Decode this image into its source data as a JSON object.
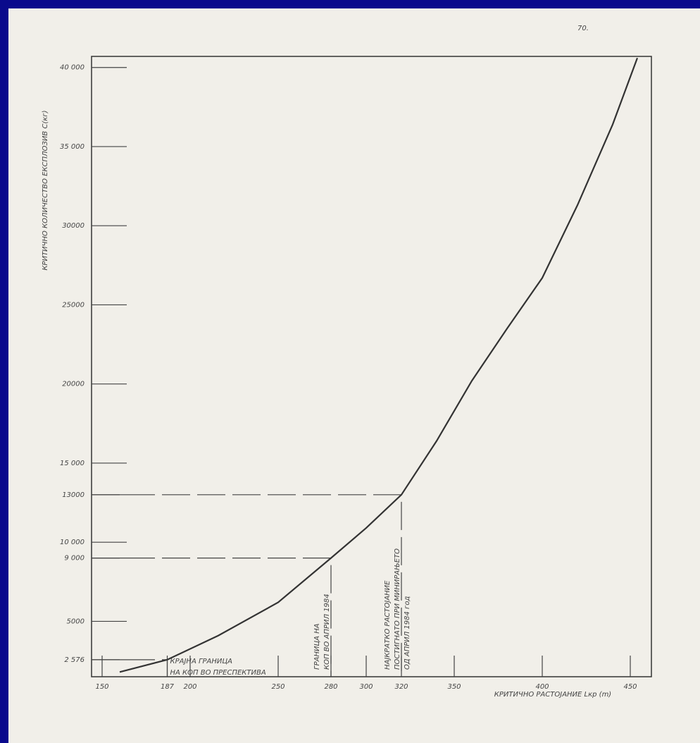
{
  "chart_data": {
    "type": "line",
    "page_number": "70.",
    "y_label": "КРИТИЧНО КОЛИЧЕСТВО ЕКСПЛОЗИВ  C(кг)",
    "x_label": "КРИТИЧНО  РАСТОЈАНИЕ  Lкр (m)",
    "x": [
      160,
      187,
      216,
      250,
      280,
      300,
      320,
      340,
      360,
      380,
      400,
      420,
      440,
      454
    ],
    "series": [
      {
        "color": "#333333",
        "values": [
          1800,
          2576,
          4100,
          6200,
          9000,
          10900,
          13000,
          16400,
          20200,
          23500,
          26700,
          31300,
          36400,
          40600
        ]
      }
    ],
    "xlim": [
      144,
      462
    ],
    "ylim": [
      1500,
      40700
    ],
    "xticks": [
      150,
      187,
      200,
      250,
      280,
      300,
      320,
      350,
      400,
      450
    ],
    "yticks": [
      {
        "value": 40000,
        "label": "40 000"
      },
      {
        "value": 35000,
        "label": "35 000"
      },
      30000,
      25000,
      20000,
      {
        "value": 15000,
        "label": "15 000"
      },
      13000,
      {
        "value": 10000,
        "label": "10 000"
      },
      {
        "value": 9000,
        "label": "9 000"
      },
      5000,
      {
        "value": 2576,
        "label": "2 576"
      }
    ],
    "reference_points": [
      {
        "x": 187,
        "y": 2576
      },
      {
        "x": 280,
        "y": 9000
      },
      {
        "x": 320,
        "y": 13000
      }
    ],
    "annotations": [
      {
        "x": 187,
        "lines": [
          "КРАЈНА ГРАНИЦА",
          "НА КОП ВО ПРЕСПЕКТИВА"
        ]
      },
      {
        "x": 280,
        "lines": [
          "ГРАНИЦА НА",
          "КОП ВО АПРИЛ 1984"
        ]
      },
      {
        "x": 320,
        "lines": [
          "НАЈКРАТКО РАСТОЈАНИЕ",
          "ПОСТИГНАТО ПРИ МИНИРАЊЕТО",
          "ОД АПРИЛ 1984 год"
        ]
      }
    ]
  }
}
